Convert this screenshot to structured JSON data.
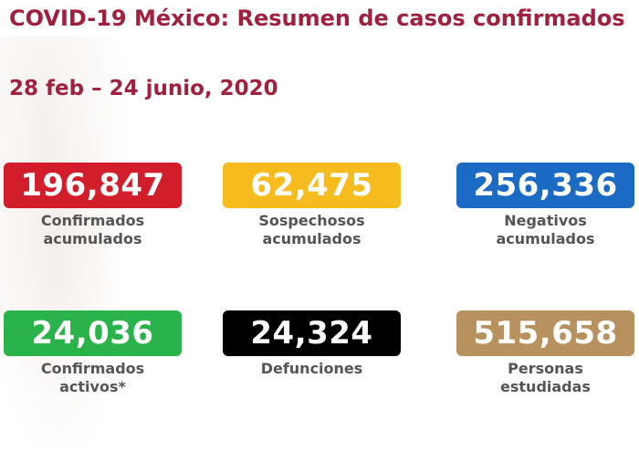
{
  "header": {
    "title": "COVID-19 México: Resumen de casos confirmados",
    "date_range": "28 feb – 24 junio, 2020"
  },
  "cards": [
    {
      "value": "196,847",
      "label_line1": "Confirmados",
      "label_line2": "acumulados",
      "color": "#d21d2a"
    },
    {
      "value": "62,475",
      "label_line1": "Sospechosos",
      "label_line2": "acumulados",
      "color": "#f6bb1d"
    },
    {
      "value": "256,336",
      "label_line1": "Negativos",
      "label_line2": "acumulados",
      "color": "#1b6bc4"
    },
    {
      "value": "24,036",
      "label_line1": "Confirmados",
      "label_line2": "activos*",
      "color": "#29b34a"
    },
    {
      "value": "24,324",
      "label_line1": "Defunciones",
      "label_line2": "",
      "color": "#000000"
    },
    {
      "value": "515,658",
      "label_line1": "Personas",
      "label_line2": "estudiadas",
      "color": "#b8925e"
    }
  ]
}
